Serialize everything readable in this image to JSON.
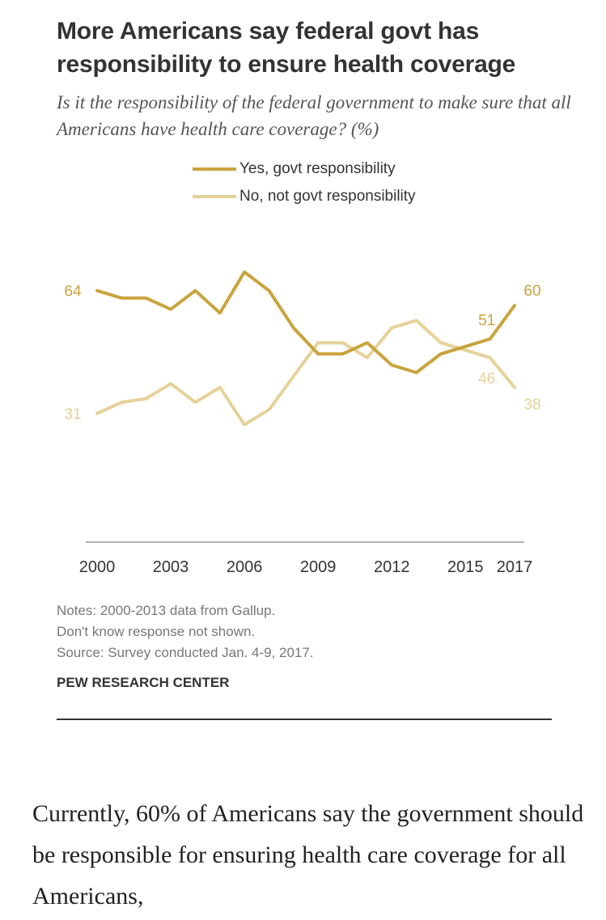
{
  "header": {
    "title": "More Americans say federal govt has responsibility to ensure health coverage",
    "subtitle": "Is it the responsibility of the federal government to make sure that all Americans have health care coverage? (%)"
  },
  "chart_data": {
    "type": "line",
    "title": "More Americans say federal govt has responsibility to ensure health coverage",
    "x": [
      2000,
      2001,
      2002,
      2003,
      2004,
      2005,
      2006,
      2007,
      2008,
      2009,
      2010,
      2011,
      2012,
      2013,
      2014,
      2015,
      2016,
      2017
    ],
    "x_tick_labels": [
      "2000",
      "2003",
      "2006",
      "2009",
      "2012",
      "2015",
      "2017"
    ],
    "x_tick_values": [
      2000,
      2003,
      2006,
      2009,
      2012,
      2015,
      2017
    ],
    "xlim": [
      2000,
      2017
    ],
    "ylim": [
      0,
      100
    ],
    "grid": false,
    "legend_position": "top",
    "series": [
      {
        "name": "Yes, govt responsibility",
        "color": "#C9A33D",
        "values": [
          64,
          62,
          62,
          59,
          64,
          58,
          69,
          64,
          54,
          47,
          47,
          50,
          44,
          42,
          47,
          49,
          51,
          60
        ],
        "labels": [
          {
            "x": 2000,
            "text": "64"
          },
          {
            "x": 2016,
            "text": "51"
          },
          {
            "x": 2017,
            "text": "60"
          }
        ]
      },
      {
        "name": "No, not govt responsibility",
        "color": "#E6D199",
        "values": [
          31,
          34,
          35,
          39,
          34,
          38,
          28,
          32,
          41,
          50,
          50,
          46,
          54,
          56,
          50,
          48,
          46,
          38
        ],
        "labels": [
          {
            "x": 2000,
            "text": "31"
          },
          {
            "x": 2016,
            "text": "46"
          },
          {
            "x": 2017,
            "text": "38"
          }
        ]
      }
    ]
  },
  "footer": {
    "notes": [
      "Notes: 2000-2013 data from Gallup.",
      "Don't know response not shown.",
      "Source: Survey conducted Jan. 4-9, 2017."
    ],
    "brand": "PEW RESEARCH CENTER"
  },
  "article": {
    "text": "Currently, 60% of Americans say the government should be responsible for ensuring health care coverage for all Americans,"
  }
}
